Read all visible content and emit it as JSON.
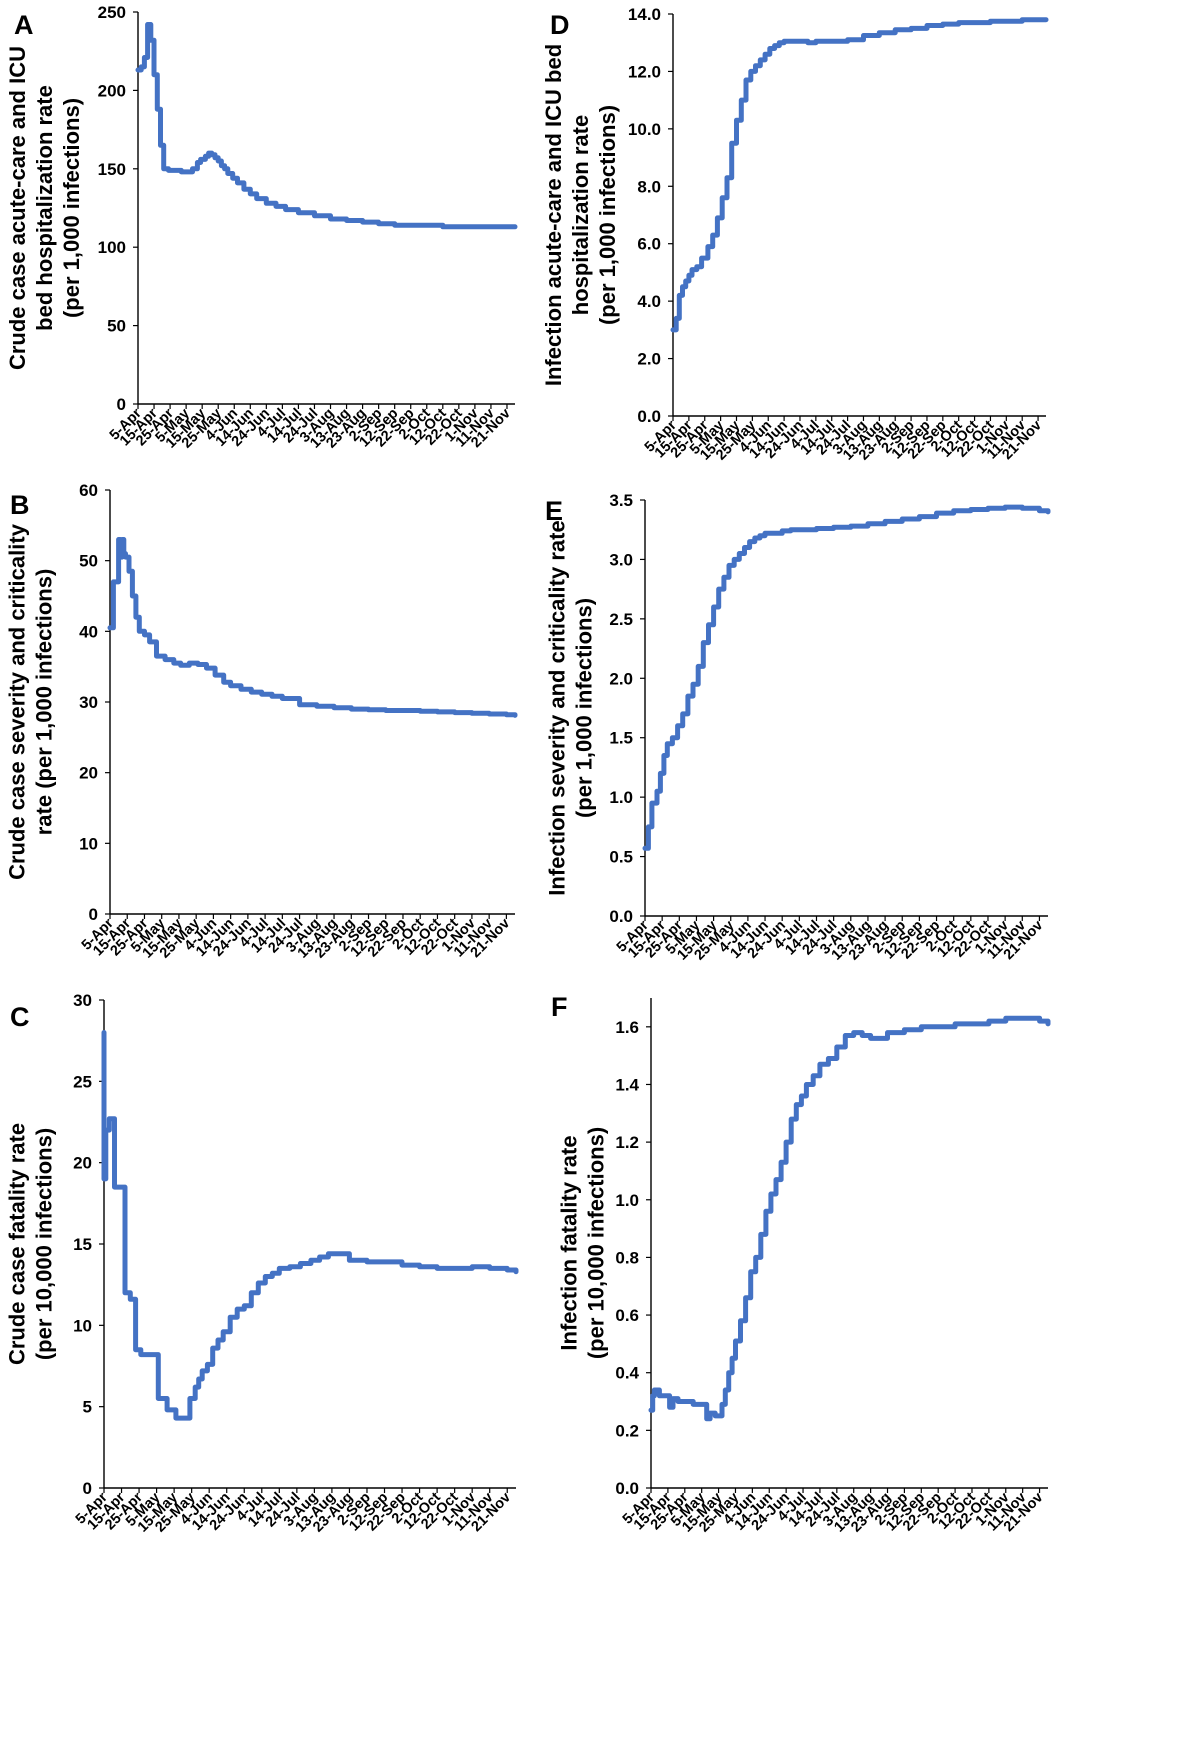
{
  "chart_data": [
    {
      "id": "A",
      "panel_label": "A",
      "type": "line",
      "ylabel_lines": [
        "Crude case acute-care and ICU",
        "bed hospitalization rate",
        "(per 1,000 infections)"
      ],
      "ylim": [
        0,
        250
      ],
      "yticks": [
        "0",
        "50",
        "100",
        "150",
        "200",
        "250"
      ],
      "xlim": [
        "5-Apr",
        "26-Nov"
      ],
      "xticks": [
        "5-Apr",
        "15-Apr",
        "25-Apr",
        "5-May",
        "15-May",
        "25-May",
        "4-Jun",
        "14-Jun",
        "24-Jun",
        "4-Jul",
        "14-Jul",
        "24-Jul",
        "3-Aug",
        "13-Aug",
        "23-Aug",
        "2-Sep",
        "12-Sep",
        "22-Sep",
        "2-Oct",
        "12-Oct",
        "22-Oct",
        "1-Nov",
        "11-Nov",
        "21-Nov"
      ],
      "series": [
        {
          "x": [
            "5-Apr",
            "7-Apr",
            "9-Apr",
            "10-Apr",
            "11-Apr",
            "13-Apr",
            "15-Apr",
            "17-Apr",
            "19-Apr",
            "21-Apr",
            "24-Apr",
            "28-Apr",
            "2-May",
            "4-May",
            "7-May",
            "9-May",
            "12-May",
            "14-May",
            "17-May",
            "19-May",
            "21-May",
            "23-May",
            "25-May",
            "27-May",
            "29-May",
            "31-May",
            "3-Jun",
            "6-Jun",
            "10-Jun",
            "14-Jun",
            "18-Jun",
            "24-Jun",
            "30-Jun",
            "6-Jul",
            "14-Jul",
            "24-Jul",
            "3-Aug",
            "13-Aug",
            "23-Aug",
            "2-Sep",
            "12-Sep",
            "22-Sep",
            "2-Oct",
            "12-Oct",
            "22-Oct",
            "1-Nov",
            "11-Nov",
            "21-Nov",
            "26-Nov"
          ],
          "y": [
            213,
            215,
            221,
            221,
            242,
            232,
            210,
            188,
            165,
            150,
            149,
            149,
            148,
            148,
            148,
            150,
            154,
            156,
            158,
            160,
            159,
            157,
            155,
            152,
            150,
            147,
            144,
            141,
            137,
            134,
            131,
            128,
            126,
            124,
            122,
            120,
            118,
            117,
            116,
            115,
            114,
            114,
            114,
            113,
            113,
            113,
            113,
            113,
            113
          ]
        }
      ]
    },
    {
      "id": "B",
      "panel_label": "B",
      "type": "line",
      "ylabel_lines": [
        "Crude case severity and criticality",
        "rate (per 1,000 infections)"
      ],
      "ylim": [
        0,
        60
      ],
      "yticks": [
        "0",
        "10",
        "20",
        "30",
        "40",
        "50",
        "60"
      ],
      "xlim": [
        "5-Apr",
        "26-Nov"
      ],
      "xticks": [
        "5-Apr",
        "15-Apr",
        "25-Apr",
        "5-May",
        "15-May",
        "25-May",
        "4-Jun",
        "14-Jun",
        "24-Jun",
        "4-Jul",
        "14-Jul",
        "24-Jul",
        "3-Aug",
        "13-Aug",
        "23-Aug",
        "2-Sep",
        "12-Sep",
        "22-Sep",
        "2-Oct",
        "12-Oct",
        "22-Oct",
        "1-Nov",
        "11-Nov",
        "21-Nov"
      ],
      "series": [
        {
          "x": [
            "5-Apr",
            "7-Apr",
            "10-Apr",
            "11-Apr",
            "12-Apr",
            "13-Apr",
            "14-Apr",
            "16-Apr",
            "18-Apr",
            "20-Apr",
            "22-Apr",
            "25-Apr",
            "28-Apr",
            "2-May",
            "7-May",
            "12-May",
            "16-May",
            "21-May",
            "26-May",
            "31-May",
            "5-Jun",
            "10-Jun",
            "14-Jun",
            "20-Jun",
            "26-Jun",
            "2-Jul",
            "8-Jul",
            "14-Jul",
            "24-Jul",
            "3-Aug",
            "13-Aug",
            "23-Aug",
            "2-Sep",
            "12-Sep",
            "22-Sep",
            "2-Oct",
            "12-Oct",
            "22-Oct",
            "1-Nov",
            "11-Nov",
            "21-Nov",
            "26-Nov"
          ],
          "y": [
            40.5,
            47,
            53,
            50.5,
            53,
            51,
            50.5,
            48.5,
            45,
            42,
            40,
            39.5,
            38.5,
            36.5,
            36,
            35.5,
            35.2,
            35.5,
            35.3,
            34.8,
            33.8,
            32.8,
            32.3,
            31.8,
            31.4,
            31.1,
            30.8,
            30.5,
            29.6,
            29.4,
            29.2,
            29.0,
            28.9,
            28.8,
            28.8,
            28.7,
            28.6,
            28.5,
            28.4,
            28.3,
            28.2,
            28.1
          ]
        }
      ]
    },
    {
      "id": "C",
      "panel_label": "C",
      "type": "line",
      "ylabel_lines": [
        "Crude case fatality rate",
        "(per 10,000 infections)"
      ],
      "ylim": [
        0,
        30
      ],
      "yticks": [
        "0",
        "5",
        "10",
        "15",
        "20",
        "25",
        "30"
      ],
      "xlim": [
        "5-Apr",
        "26-Nov"
      ],
      "xticks": [
        "5-Apr",
        "15-Apr",
        "25-Apr",
        "5-May",
        "15-May",
        "25-May",
        "4-Jun",
        "14-Jun",
        "24-Jun",
        "4-Jul",
        "14-Jul",
        "24-Jul",
        "3-Aug",
        "13-Aug",
        "23-Aug",
        "2-Sep",
        "12-Sep",
        "22-Sep",
        "2-Oct",
        "12-Oct",
        "22-Oct",
        "1-Nov",
        "11-Nov",
        "21-Nov"
      ],
      "series": [
        {
          "x": [
            "5-Apr",
            "5-Apr",
            "6-Apr",
            "8-Apr",
            "9-Apr",
            "11-Apr",
            "13-Apr",
            "17-Apr",
            "20-Apr",
            "23-Apr",
            "26-Apr",
            "30-Apr",
            "6-May",
            "11-May",
            "16-May",
            "21-May",
            "24-May",
            "27-May",
            "29-May",
            "31-May",
            "3-Jun",
            "6-Jun",
            "9-Jun",
            "12-Jun",
            "16-Jun",
            "20-Jun",
            "24-Jun",
            "28-Jun",
            "2-Jul",
            "6-Jul",
            "10-Jul",
            "14-Jul",
            "20-Jul",
            "26-Jul",
            "1-Aug",
            "6-Aug",
            "11-Aug",
            "16-Aug",
            "23-Aug",
            "2-Sep",
            "12-Sep",
            "22-Sep",
            "2-Oct",
            "12-Oct",
            "22-Oct",
            "1-Nov",
            "11-Nov",
            "21-Nov",
            "26-Nov"
          ],
          "y": [
            28,
            19,
            22,
            22.7,
            22.7,
            18.5,
            18.5,
            12,
            11.6,
            8.5,
            8.2,
            8.2,
            5.5,
            4.8,
            4.3,
            4.3,
            5.5,
            6.2,
            6.7,
            7.2,
            7.6,
            8.6,
            9.1,
            9.6,
            10.5,
            11.0,
            11.2,
            12.0,
            12.6,
            13.0,
            13.2,
            13.5,
            13.6,
            13.8,
            14.0,
            14.2,
            14.4,
            14.4,
            14.0,
            13.9,
            13.9,
            13.7,
            13.6,
            13.5,
            13.5,
            13.6,
            13.5,
            13.4,
            13.3
          ]
        }
      ]
    },
    {
      "id": "D",
      "panel_label": "D",
      "type": "line",
      "ylabel_lines": [
        "Infection acute-care and ICU bed",
        "hospitalization rate",
        "(per 1,000 infections)"
      ],
      "ylim": [
        0,
        14
      ],
      "yticks": [
        "0.0",
        "2.0",
        "4.0",
        "6.0",
        "8.0",
        "10.0",
        "12.0",
        "14.0"
      ],
      "xlim": [
        "5-Apr",
        "26-Nov"
      ],
      "xticks": [
        "5-Apr",
        "15-Apr",
        "25-Apr",
        "5-May",
        "15-May",
        "25-May",
        "4-Jun",
        "14-Jun",
        "24-Jun",
        "4-Jul",
        "14-Jul",
        "24-Jul",
        "3-Aug",
        "13-Aug",
        "23-Aug",
        "2-Sep",
        "12-Sep",
        "22-Sep",
        "2-Oct",
        "12-Oct",
        "22-Oct",
        "1-Nov",
        "11-Nov",
        "21-Nov"
      ],
      "series": [
        {
          "x": [
            "5-Apr",
            "7-Apr",
            "9-Apr",
            "11-Apr",
            "13-Apr",
            "15-Apr",
            "17-Apr",
            "20-Apr",
            "23-Apr",
            "27-Apr",
            "30-Apr",
            "3-May",
            "6-May",
            "9-May",
            "12-May",
            "15-May",
            "18-May",
            "21-May",
            "24-May",
            "27-May",
            "30-May",
            "2-Jun",
            "5-Jun",
            "8-Jun",
            "11-Jun",
            "14-Jun",
            "19-Jun",
            "24-Jun",
            "29-Jun",
            "4-Jul",
            "14-Jul",
            "24-Jul",
            "3-Aug",
            "13-Aug",
            "23-Aug",
            "2-Sep",
            "12-Sep",
            "22-Sep",
            "2-Oct",
            "12-Oct",
            "22-Oct",
            "1-Nov",
            "11-Nov",
            "21-Nov",
            "26-Nov"
          ],
          "y": [
            3.0,
            3.4,
            4.2,
            4.5,
            4.7,
            4.9,
            5.1,
            5.2,
            5.5,
            5.9,
            6.3,
            6.9,
            7.6,
            8.3,
            9.5,
            10.3,
            11.0,
            11.7,
            12.0,
            12.2,
            12.4,
            12.6,
            12.8,
            12.9,
            13.0,
            13.05,
            13.05,
            13.05,
            13.0,
            13.05,
            13.05,
            13.1,
            13.25,
            13.35,
            13.45,
            13.5,
            13.6,
            13.65,
            13.7,
            13.7,
            13.75,
            13.75,
            13.8,
            13.8,
            13.8
          ]
        }
      ]
    },
    {
      "id": "E",
      "panel_label": "E",
      "type": "line",
      "ylabel_lines": [
        "Infection severity and criticality rate",
        "(per 1,000 infections)"
      ],
      "ylim": [
        0,
        3.5
      ],
      "yticks": [
        "0.0",
        "0.5",
        "1.0",
        "1.5",
        "2.0",
        "2.5",
        "3.0",
        "3.5"
      ],
      "xlim": [
        "5-Apr",
        "26-Nov"
      ],
      "xticks": [
        "5-Apr",
        "15-Apr",
        "25-Apr",
        "5-May",
        "15-May",
        "25-May",
        "4-Jun",
        "14-Jun",
        "24-Jun",
        "4-Jul",
        "14-Jul",
        "24-Jul",
        "3-Aug",
        "13-Aug",
        "23-Aug",
        "2-Sep",
        "12-Sep",
        "22-Sep",
        "2-Oct",
        "12-Oct",
        "22-Oct",
        "1-Nov",
        "11-Nov",
        "21-Nov"
      ],
      "series": [
        {
          "x": [
            "5-Apr",
            "7-Apr",
            "9-Apr",
            "12-Apr",
            "14-Apr",
            "16-Apr",
            "18-Apr",
            "21-Apr",
            "24-Apr",
            "27-Apr",
            "30-Apr",
            "3-May",
            "6-May",
            "9-May",
            "12-May",
            "15-May",
            "18-May",
            "21-May",
            "24-May",
            "27-May",
            "30-May",
            "2-Jun",
            "5-Jun",
            "8-Jun",
            "11-Jun",
            "14-Jun",
            "19-Jun",
            "24-Jun",
            "29-Jun",
            "4-Jul",
            "14-Jul",
            "24-Jul",
            "3-Aug",
            "13-Aug",
            "23-Aug",
            "2-Sep",
            "12-Sep",
            "22-Sep",
            "2-Oct",
            "12-Oct",
            "22-Oct",
            "1-Nov",
            "11-Nov",
            "21-Nov",
            "26-Nov"
          ],
          "y": [
            0.57,
            0.75,
            0.95,
            1.05,
            1.2,
            1.35,
            1.45,
            1.5,
            1.6,
            1.7,
            1.85,
            1.95,
            2.1,
            2.3,
            2.45,
            2.6,
            2.75,
            2.85,
            2.95,
            3.0,
            3.05,
            3.1,
            3.15,
            3.18,
            3.2,
            3.22,
            3.22,
            3.24,
            3.25,
            3.25,
            3.26,
            3.27,
            3.28,
            3.3,
            3.32,
            3.34,
            3.36,
            3.39,
            3.41,
            3.42,
            3.43,
            3.44,
            3.43,
            3.41,
            3.4
          ]
        }
      ]
    },
    {
      "id": "F",
      "panel_label": "F",
      "type": "line",
      "ylabel_lines": [
        "Infection fatality rate",
        "(per 10,000 infections)"
      ],
      "ylim": [
        0,
        1.7
      ],
      "yticks": [
        "0.0",
        "0.2",
        "0.4",
        "0.6",
        "0.8",
        "1.0",
        "1.2",
        "1.4",
        "1.6"
      ],
      "xlim": [
        "5-Apr",
        "26-Nov"
      ],
      "xticks": [
        "5-Apr",
        "15-Apr",
        "25-Apr",
        "5-May",
        "15-May",
        "25-May",
        "4-Jun",
        "14-Jun",
        "24-Jun",
        "4-Jul",
        "14-Jul",
        "24-Jul",
        "3-Aug",
        "13-Aug",
        "23-Aug",
        "2-Sep",
        "12-Sep",
        "22-Sep",
        "2-Oct",
        "12-Oct",
        "22-Oct",
        "1-Nov",
        "11-Nov",
        "21-Nov"
      ],
      "series": [
        {
          "x": [
            "5-Apr",
            "6-Apr",
            "7-Apr",
            "10-Apr",
            "13-Apr",
            "16-Apr",
            "18-Apr",
            "21-Apr",
            "25-Apr",
            "30-Apr",
            "5-May",
            "8-May",
            "10-May",
            "13-May",
            "15-May",
            "17-May",
            "19-May",
            "21-May",
            "23-May",
            "25-May",
            "28-May",
            "31-May",
            "3-Jun",
            "6-Jun",
            "9-Jun",
            "12-Jun",
            "15-Jun",
            "18-Jun",
            "21-Jun",
            "24-Jun",
            "27-Jun",
            "30-Jun",
            "3-Jul",
            "6-Jul",
            "10-Jul",
            "14-Jul",
            "19-Jul",
            "24-Jul",
            "29-Jul",
            "3-Aug",
            "8-Aug",
            "13-Aug",
            "23-Aug",
            "2-Sep",
            "12-Sep",
            "22-Sep",
            "2-Oct",
            "12-Oct",
            "22-Oct",
            "1-Nov",
            "11-Nov",
            "21-Nov",
            "26-Nov"
          ],
          "y": [
            0.27,
            0.32,
            0.34,
            0.32,
            0.32,
            0.28,
            0.31,
            0.3,
            0.3,
            0.29,
            0.29,
            0.24,
            0.26,
            0.25,
            0.25,
            0.29,
            0.34,
            0.4,
            0.45,
            0.51,
            0.58,
            0.66,
            0.75,
            0.8,
            0.88,
            0.96,
            1.02,
            1.07,
            1.13,
            1.2,
            1.28,
            1.33,
            1.36,
            1.4,
            1.43,
            1.47,
            1.49,
            1.53,
            1.57,
            1.58,
            1.57,
            1.56,
            1.58,
            1.59,
            1.6,
            1.6,
            1.61,
            1.61,
            1.62,
            1.63,
            1.63,
            1.62,
            1.61
          ]
        }
      ]
    }
  ]
}
